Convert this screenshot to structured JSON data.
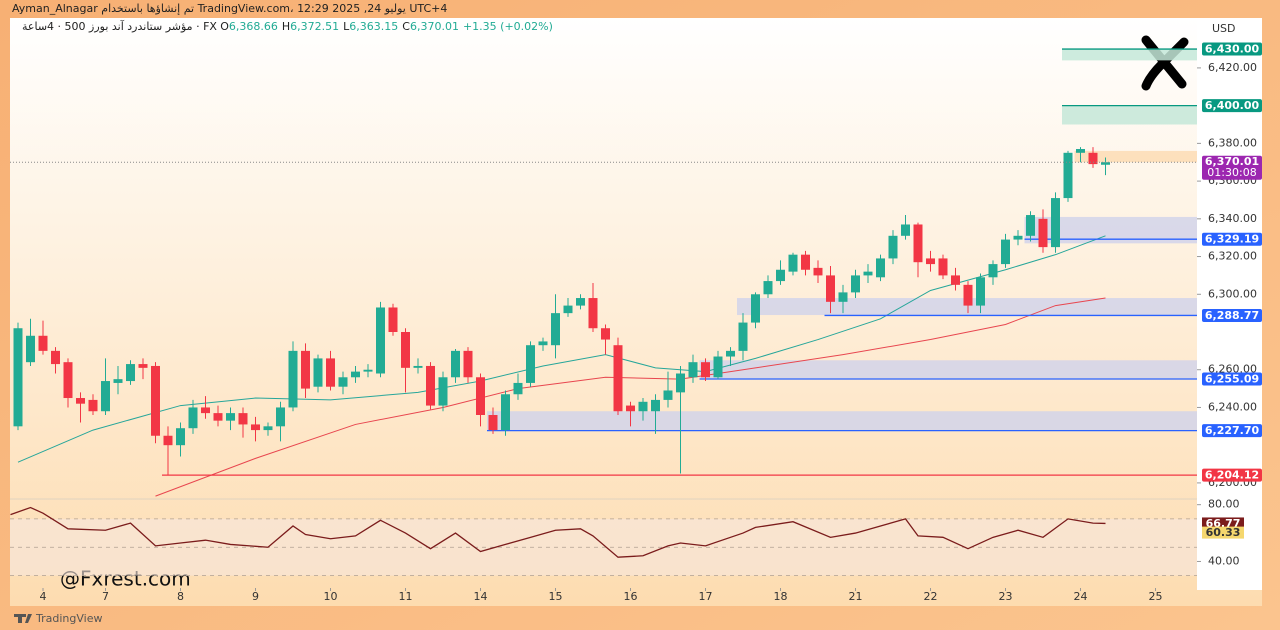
{
  "chart_data": {
    "type": "candlestick",
    "title": "Ayman_Alnagar تم إنشاؤها باستخدام TradingView.com، 12:29 2025 ,24 يوليو UTC+4",
    "instrument": "مؤشر ستاندرد آند بورز 500 · 4ساعة · FX",
    "ohlc_header": [
      {
        "key": "O",
        "value": "6,368.66"
      },
      {
        "key": "H",
        "value": "6,372.51"
      },
      {
        "key": "L",
        "value": "6,363.15"
      },
      {
        "key": "C",
        "value": "6,370.01"
      }
    ],
    "change": "+1.35 (+0.02%)",
    "currency": "USD",
    "watermark": "@Fxrest.com",
    "brand": "TradingView",
    "up_color": "#22ab94",
    "down_color": "#f23645",
    "xlim": [
      -0.64,
      94.32
    ],
    "xticks": [
      {
        "value": 2,
        "label": "4"
      },
      {
        "value": 7,
        "label": "7"
      },
      {
        "value": 13,
        "label": "8"
      },
      {
        "value": 19,
        "label": "9"
      },
      {
        "value": 25,
        "label": "10"
      },
      {
        "value": 31,
        "label": "11"
      },
      {
        "value": 37,
        "label": "14"
      },
      {
        "value": 43,
        "label": "15"
      },
      {
        "value": 49,
        "label": "16"
      },
      {
        "value": 55,
        "label": "17"
      },
      {
        "value": 61,
        "label": "18"
      },
      {
        "value": 67,
        "label": "21"
      },
      {
        "value": 73,
        "label": "22"
      },
      {
        "value": 79,
        "label": "23"
      },
      {
        "value": 85,
        "label": "24"
      },
      {
        "value": 91,
        "label": "25"
      }
    ],
    "ylim": [
      6192.0,
      6445.4
    ],
    "yticks": [
      {
        "value": 6420,
        "label": "6,420.00"
      },
      {
        "value": 6380,
        "label": "6,380.00"
      },
      {
        "value": 6360,
        "label": "6,360.00"
      },
      {
        "value": 6340,
        "label": "6,340.00"
      },
      {
        "value": 6320,
        "label": "6,320.00"
      },
      {
        "value": 6300,
        "label": "6,300.00"
      },
      {
        "value": 6260,
        "label": "6,260.00"
      },
      {
        "value": 6240,
        "label": "6,240.00"
      },
      {
        "value": 6200,
        "label": "6,200.00"
      }
    ],
    "candles": [
      [
        6230,
        6285,
        6228,
        6282
      ],
      [
        6264,
        6287,
        6262,
        6278
      ],
      [
        6278,
        6286,
        6268,
        6270
      ],
      [
        6270,
        6272,
        6258,
        6263
      ],
      [
        6264,
        6266,
        6240,
        6245
      ],
      [
        6245,
        6248,
        6232,
        6242
      ],
      [
        6244,
        6247,
        6236,
        6238
      ],
      [
        6238,
        6266,
        6236,
        6254
      ],
      [
        6253,
        6262,
        6247,
        6255
      ],
      [
        6254,
        6265,
        6252,
        6263
      ],
      [
        6263,
        6266,
        6255,
        6261
      ],
      [
        6262,
        6264,
        6221,
        6225
      ],
      [
        6225,
        6230,
        6204,
        6220
      ],
      [
        6220,
        6232,
        6214,
        6229
      ],
      [
        6229,
        6244,
        6226,
        6240
      ],
      [
        6240,
        6246,
        6234,
        6237
      ],
      [
        6237,
        6241,
        6230,
        6233
      ],
      [
        6233,
        6240,
        6228,
        6237
      ],
      [
        6237,
        6240,
        6224,
        6231
      ],
      [
        6231,
        6235,
        6222,
        6228
      ],
      [
        6228,
        6232,
        6225,
        6230
      ],
      [
        6230,
        6243,
        6222,
        6240
      ],
      [
        6240,
        6275,
        6238,
        6270
      ],
      [
        6270,
        6274,
        6245,
        6250
      ],
      [
        6251,
        6268,
        6248,
        6266
      ],
      [
        6266,
        6270,
        6249,
        6251
      ],
      [
        6251,
        6259,
        6247,
        6256
      ],
      [
        6256,
        6262,
        6253,
        6259
      ],
      [
        6259,
        6263,
        6256,
        6260
      ],
      [
        6258,
        6296,
        6256,
        6293
      ],
      [
        6293,
        6295,
        6278,
        6280
      ],
      [
        6280,
        6282,
        6248,
        6261
      ],
      [
        6261,
        6266,
        6258,
        6262
      ],
      [
        6262,
        6264,
        6239,
        6241
      ],
      [
        6241,
        6259,
        6238,
        6256
      ],
      [
        6256,
        6271,
        6253,
        6270
      ],
      [
        6270,
        6272,
        6253,
        6256
      ],
      [
        6256,
        6258,
        6230,
        6236
      ],
      [
        6236,
        6240,
        6226,
        6228
      ],
      [
        6228,
        6249,
        6225,
        6247
      ],
      [
        6247,
        6258,
        6244,
        6253
      ],
      [
        6253,
        6275,
        6251,
        6273
      ],
      [
        6273,
        6277,
        6270,
        6275
      ],
      [
        6273,
        6300,
        6266,
        6290
      ],
      [
        6290,
        6298,
        6288,
        6294
      ],
      [
        6294,
        6300,
        6292,
        6298
      ],
      [
        6298,
        6306,
        6280,
        6282
      ],
      [
        6282,
        6284,
        6268,
        6276
      ],
      [
        6273,
        6277,
        6236,
        6238
      ],
      [
        6241,
        6243,
        6230,
        6238
      ],
      [
        6238,
        6245,
        6233,
        6243
      ],
      [
        6238,
        6247,
        6226,
        6244
      ],
      [
        6244,
        6259,
        6240,
        6249
      ],
      [
        6248,
        6262,
        6205,
        6258
      ],
      [
        6256,
        6268,
        6253,
        6264
      ],
      [
        6264,
        6266,
        6254,
        6256
      ],
      [
        6256,
        6270,
        6255,
        6267
      ],
      [
        6267,
        6272,
        6262,
        6270
      ],
      [
        6270,
        6290,
        6265,
        6285
      ],
      [
        6285,
        6301,
        6282,
        6300
      ],
      [
        6300,
        6310,
        6298,
        6307
      ],
      [
        6307,
        6318,
        6305,
        6313
      ],
      [
        6312,
        6322,
        6310,
        6321
      ],
      [
        6321,
        6323,
        6310,
        6313
      ],
      [
        6314,
        6318,
        6306,
        6310
      ],
      [
        6310,
        6315,
        6290,
        6296
      ],
      [
        6296,
        6305,
        6290,
        6301
      ],
      [
        6301,
        6313,
        6298,
        6310
      ],
      [
        6310,
        6316,
        6306,
        6312
      ],
      [
        6309,
        6321,
        6307,
        6319
      ],
      [
        6319,
        6334,
        6316,
        6331
      ],
      [
        6331,
        6342,
        6329,
        6337
      ],
      [
        6337,
        6338,
        6309,
        6317
      ],
      [
        6319,
        6323,
        6312,
        6316
      ],
      [
        6319,
        6321,
        6308,
        6310
      ],
      [
        6310,
        6314,
        6302,
        6305
      ],
      [
        6305,
        6307,
        6290,
        6294
      ],
      [
        6294,
        6311,
        6290,
        6309
      ],
      [
        6309,
        6318,
        6305,
        6316
      ],
      [
        6316,
        6332,
        6314,
        6329
      ],
      [
        6329,
        6334,
        6326,
        6331
      ],
      [
        6331,
        6344,
        6328,
        6342
      ],
      [
        6340,
        6345,
        6322,
        6325
      ],
      [
        6325,
        6354,
        6322,
        6351
      ],
      [
        6351,
        6376,
        6349,
        6375
      ],
      [
        6375,
        6378,
        6370,
        6377
      ],
      [
        6375,
        6378,
        6367,
        6369
      ],
      [
        6368.66,
        6372.51,
        6363.15,
        6370.01
      ]
    ],
    "series": [
      {
        "name": null,
        "color": "#26a69a",
        "x": [
          0,
          6,
          13,
          19,
          25,
          32,
          37,
          42,
          47,
          51,
          55,
          59,
          64,
          69,
          73,
          79,
          83,
          87
        ],
        "values": [
          6211,
          6228,
          6241,
          6245,
          6244,
          6248,
          6254,
          6262,
          6268,
          6261,
          6259,
          6266,
          6276,
          6287,
          6302,
          6313,
          6321,
          6331
        ]
      },
      {
        "name": null,
        "color": "#e8464f",
        "x": [
          11,
          19,
          27,
          34,
          40,
          47,
          53,
          59,
          66,
          73,
          79,
          83,
          87
        ],
        "values": [
          6193,
          6213,
          6231,
          6240,
          6250,
          6256,
          6255,
          6261,
          6268,
          6276,
          6284,
          6294,
          6298
        ]
      }
    ],
    "levels": [
      {
        "value": 6430,
        "label": "6,430.00",
        "color": "#089981",
        "start": 84
      },
      {
        "value": 6400,
        "label": "6,400.00",
        "color": "#089981",
        "start": 84
      },
      {
        "value": 6329.19,
        "label": "6,329.19",
        "color": "#2962ff",
        "start": 81
      },
      {
        "value": 6288.77,
        "label": "6,288.77",
        "color": "#2962ff",
        "start": 65
      },
      {
        "value": 6255.09,
        "label": "6,255.09",
        "color": "#2962ff",
        "start": 55
      },
      {
        "value": 6227.7,
        "label": "6,227.70",
        "color": "#2962ff",
        "start": 38
      },
      {
        "value": 6204.12,
        "label": "6,204.12",
        "color": "#f23645",
        "start": 12
      }
    ],
    "current": {
      "value": 6370.01,
      "label": "6,370.01",
      "countdown": "01:30:08",
      "color": "#9c27b0"
    },
    "zones": [
      {
        "low": 6424,
        "high": 6430,
        "start": 84,
        "color": "#c4e8d8"
      },
      {
        "low": 6390,
        "high": 6400,
        "start": 84,
        "color": "#c4e8d8"
      },
      {
        "low": 6370,
        "high": 6376,
        "start": 85,
        "color": "#fddcb4"
      },
      {
        "low": 6327,
        "high": 6341,
        "start": 81,
        "color": "#d2d3ea"
      },
      {
        "low": 6289,
        "high": 6298,
        "start": 58,
        "color": "#d2d3ea"
      },
      {
        "low": 6255,
        "high": 6265,
        "start": 55,
        "color": "#d2d3ea"
      },
      {
        "low": 6228,
        "high": 6238,
        "start": 38,
        "color": "#d2d3ea"
      }
    ],
    "rsi": {
      "color": "#7b1c1c",
      "ylim": [
        21.3,
        83.3
      ],
      "yticks": [
        {
          "value": 80,
          "label": "80.00"
        },
        {
          "value": 40,
          "label": "40.00"
        }
      ],
      "bands": [
        70,
        50,
        30
      ],
      "x": [
        -0.6,
        1,
        2,
        4,
        7,
        9,
        11,
        13,
        15,
        17,
        20,
        22,
        23,
        25,
        27,
        29,
        31,
        33,
        35,
        37,
        39,
        41,
        43,
        45,
        46,
        48,
        50,
        52,
        53,
        55,
        58,
        59,
        62,
        65,
        67,
        71,
        72,
        74,
        76,
        78,
        80,
        82,
        84,
        86,
        87
      ],
      "values": [
        73,
        78,
        74,
        63,
        62,
        67,
        51,
        53,
        55,
        52,
        50,
        65,
        59,
        56,
        58,
        69,
        60,
        49,
        60,
        47,
        52,
        57,
        62,
        63,
        58,
        43,
        44,
        51,
        53,
        51,
        60,
        64,
        68,
        57,
        60,
        70,
        58,
        57,
        49,
        57,
        62,
        57,
        70,
        67,
        66.77
      ],
      "badges": [
        {
          "value": 66.77,
          "label": "66.77",
          "color": "#7b1c1c"
        },
        {
          "value": 60.33,
          "label": "60.33",
          "color": "#f5d76e"
        }
      ]
    }
  }
}
